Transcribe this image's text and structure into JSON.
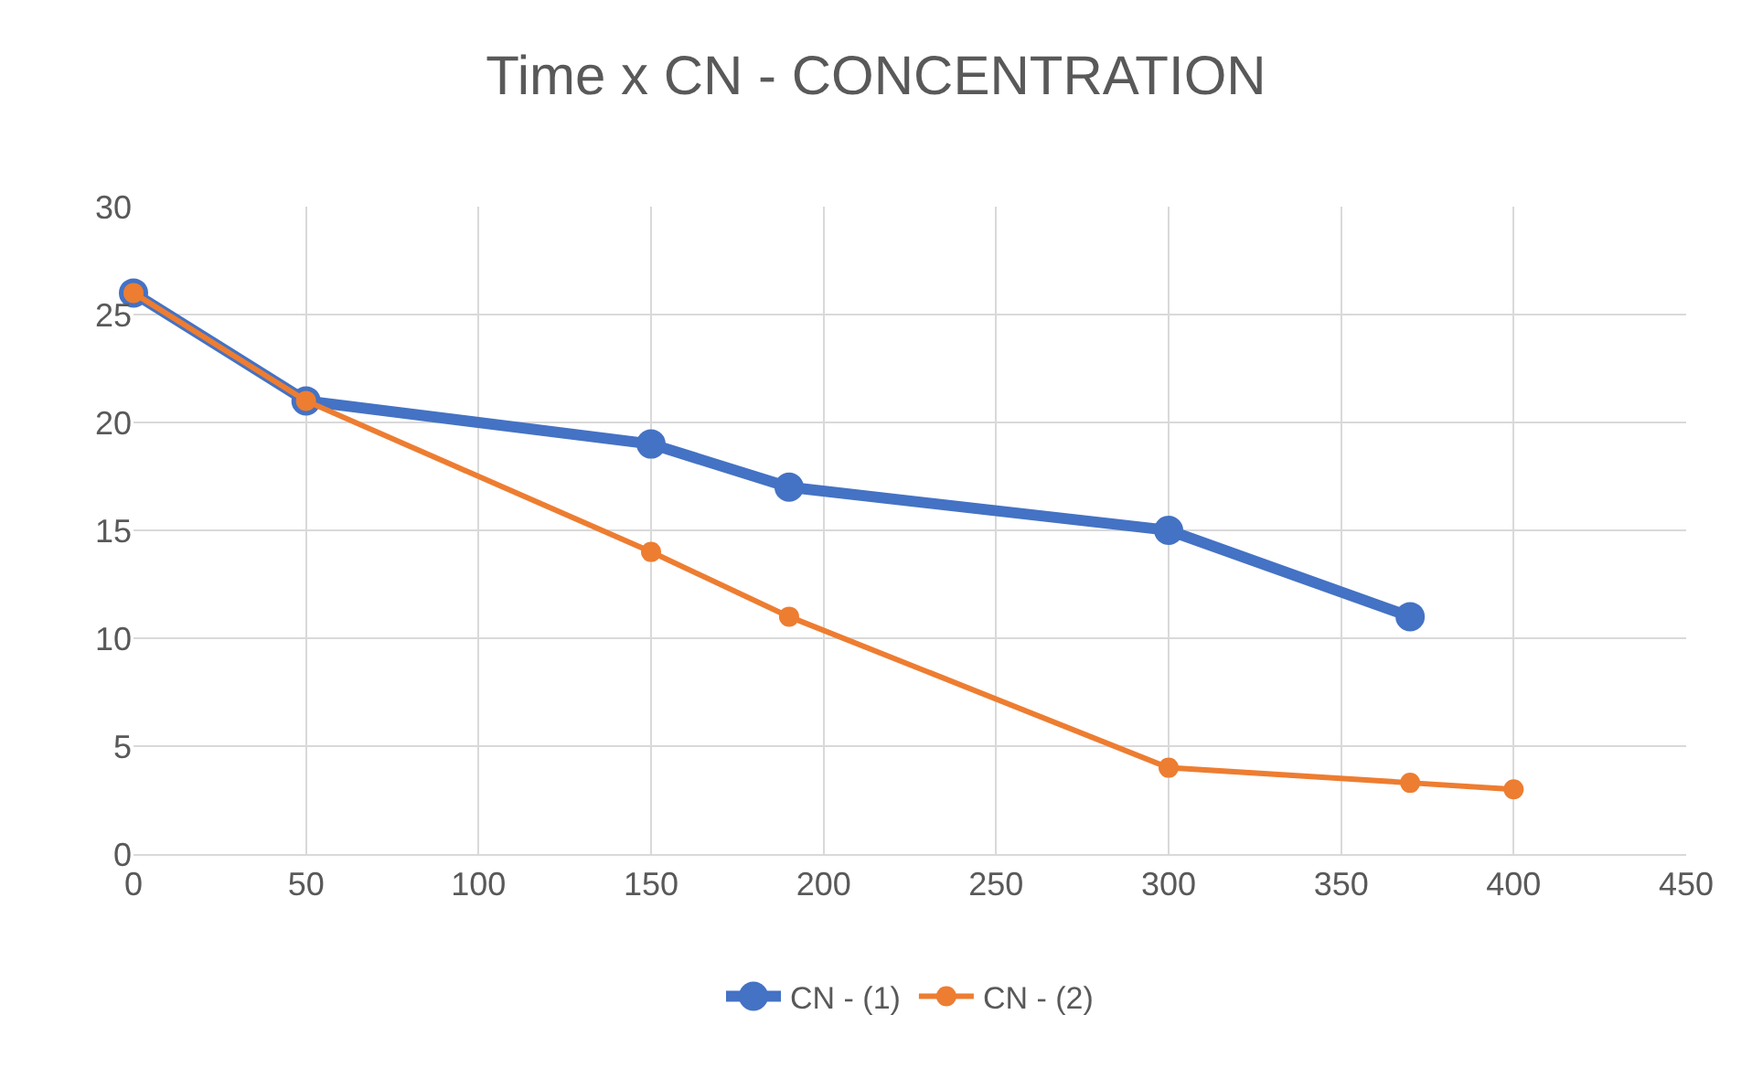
{
  "chart_data": {
    "type": "line",
    "title": "Time x CN - CONCENTRATION",
    "series": [
      {
        "name": "CN - (1)",
        "color": "#4472c4",
        "x": [
          0,
          50,
          150,
          190,
          300,
          370
        ],
        "values": [
          26,
          21,
          19,
          17,
          15,
          11
        ]
      },
      {
        "name": "CN - (2)",
        "color": "#ed7d31",
        "x": [
          0,
          50,
          150,
          190,
          300,
          370,
          400
        ],
        "values": [
          26,
          21,
          14,
          11,
          4,
          3.3,
          3
        ]
      }
    ],
    "xlim": [
      0,
      450
    ],
    "xticks": [
      0,
      50,
      100,
      150,
      200,
      250,
      300,
      350,
      400,
      450
    ],
    "ylim": [
      0,
      30
    ],
    "yticks": [
      0,
      5,
      10,
      15,
      20,
      25,
      30
    ],
    "grid": true,
    "legend": "bottom",
    "marker": "circle",
    "line_style": "solid"
  }
}
